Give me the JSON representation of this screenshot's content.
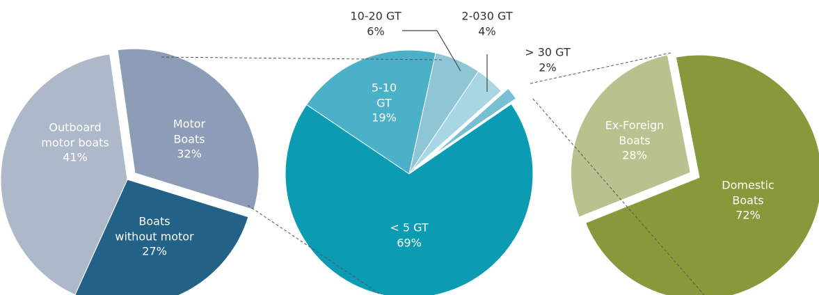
{
  "chart_data": [
    {
      "type": "pie",
      "categories": [
        "Motor\nBoats",
        "Boats\nwithout motor",
        "Outboard\nmotor boats"
      ],
      "values": [
        32,
        27,
        41
      ],
      "value_labels": [
        "32%",
        "27%",
        "41%"
      ],
      "colors": [
        "#8e9db7",
        "#226287",
        "#adb8c9"
      ]
    },
    {
      "type": "pie",
      "categories": [
        "5-10\nGT",
        "10-20 GT",
        "2-030 GT",
        "> 30 GT",
        "< 5 GT"
      ],
      "values": [
        19,
        6,
        4,
        2,
        69
      ],
      "value_labels": [
        "19%",
        "6%",
        "4%",
        "2%",
        "69%"
      ],
      "colors": [
        "#4bb1c8",
        "#8fc6d6",
        "#a9d6e3",
        "#77c0d3",
        "#0b9cb4"
      ]
    },
    {
      "type": "pie",
      "categories": [
        "Domestic\nBoats",
        "Ex-Foreign\nBoats"
      ],
      "values": [
        72,
        28
      ],
      "value_labels": [
        "72%",
        "28%"
      ],
      "colors": [
        "#879a3b",
        "#b9c28e"
      ]
    }
  ]
}
